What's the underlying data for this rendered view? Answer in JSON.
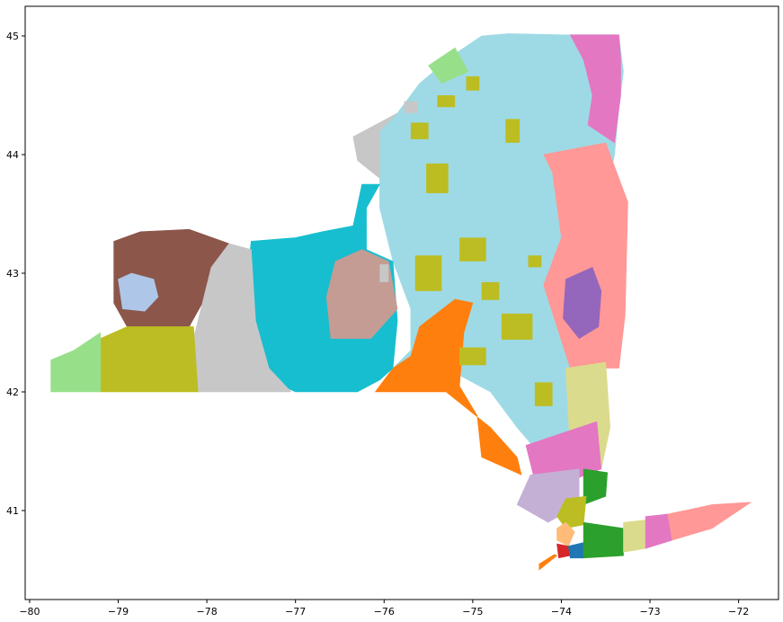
{
  "chart_data": {
    "type": "map",
    "xlim": [
      -80.05,
      -71.55
    ],
    "ylim": [
      40.25,
      45.25
    ],
    "x_ticks": [
      -80,
      -79,
      -78,
      -77,
      -76,
      -75,
      -74,
      -73,
      -72
    ],
    "y_ticks": [
      41,
      42,
      43,
      44,
      45
    ],
    "x_tick_labels": [
      "−80",
      "−79",
      "−78",
      "−77",
      "−76",
      "−75",
      "−74",
      "−73",
      "−72"
    ],
    "y_tick_labels": [
      "41",
      "42",
      "43",
      "44",
      "45"
    ],
    "grid": false,
    "legend": "none",
    "regions": [
      {
        "name": "r-lightblue",
        "color": "#9edae5",
        "pts": [
          [
            -75.9,
            42.2
          ],
          [
            -75.3,
            42.2
          ],
          [
            -74.8,
            42.0
          ],
          [
            -74.5,
            41.7
          ],
          [
            -74.1,
            41.35
          ],
          [
            -73.9,
            41.5
          ],
          [
            -73.7,
            41.9
          ],
          [
            -73.5,
            42.2
          ],
          [
            -73.55,
            42.5
          ],
          [
            -73.5,
            43.2
          ],
          [
            -73.5,
            43.6
          ],
          [
            -73.4,
            44.0
          ],
          [
            -73.35,
            44.4
          ],
          [
            -73.3,
            44.7
          ],
          [
            -73.35,
            45.0
          ],
          [
            -74.0,
            45.01
          ],
          [
            -74.6,
            45.02
          ],
          [
            -74.9,
            45.0
          ],
          [
            -75.2,
            44.85
          ],
          [
            -75.6,
            44.6
          ],
          [
            -75.85,
            44.35
          ],
          [
            -76.05,
            44.2
          ],
          [
            -76.05,
            43.55
          ],
          [
            -75.9,
            43.1
          ],
          [
            -75.7,
            42.7
          ],
          [
            -75.7,
            42.35
          ]
        ]
      },
      {
        "name": "r-pink-north",
        "color": "#e377c2",
        "pts": [
          [
            -73.35,
            45.01
          ],
          [
            -73.9,
            45.01
          ],
          [
            -73.75,
            44.8
          ],
          [
            -73.65,
            44.5
          ],
          [
            -73.7,
            44.25
          ],
          [
            -73.4,
            44.1
          ],
          [
            -73.33,
            44.5
          ],
          [
            -73.33,
            44.8
          ]
        ]
      },
      {
        "name": "r-salmon-east",
        "color": "#ff9896",
        "pts": [
          [
            -73.25,
            43.6
          ],
          [
            -73.28,
            42.65
          ],
          [
            -73.35,
            42.2
          ],
          [
            -73.9,
            42.2
          ],
          [
            -74.2,
            42.9
          ],
          [
            -74.0,
            43.3
          ],
          [
            -74.1,
            43.85
          ],
          [
            -74.2,
            44.0
          ],
          [
            -73.5,
            44.1
          ]
        ]
      },
      {
        "name": "r-purple-capital",
        "color": "#9467bd",
        "pts": [
          [
            -73.95,
            42.95
          ],
          [
            -73.65,
            43.05
          ],
          [
            -73.55,
            42.85
          ],
          [
            -73.58,
            42.55
          ],
          [
            -73.8,
            42.45
          ],
          [
            -73.98,
            42.62
          ]
        ]
      },
      {
        "name": "r-khaki-hudson",
        "color": "#dbdb8d",
        "pts": [
          [
            -73.5,
            42.25
          ],
          [
            -73.95,
            42.2
          ],
          [
            -73.9,
            41.5
          ],
          [
            -73.55,
            41.35
          ],
          [
            -73.45,
            41.7
          ]
        ]
      },
      {
        "name": "r-pink-hudson",
        "color": "#e377c2",
        "pts": [
          [
            -73.6,
            41.75
          ],
          [
            -74.4,
            41.55
          ],
          [
            -74.3,
            41.25
          ],
          [
            -73.9,
            41.25
          ],
          [
            -73.55,
            41.35
          ]
        ]
      },
      {
        "name": "r-lavender",
        "color": "#c5b0d5",
        "pts": [
          [
            -73.8,
            41.35
          ],
          [
            -74.35,
            41.3
          ],
          [
            -74.5,
            41.05
          ],
          [
            -74.15,
            40.9
          ],
          [
            -73.8,
            41.05
          ]
        ]
      },
      {
        "name": "r-green-west",
        "color": "#2ca02c",
        "pts": [
          [
            -73.75,
            41.35
          ],
          [
            -73.48,
            41.32
          ],
          [
            -73.5,
            41.12
          ],
          [
            -73.75,
            41.05
          ]
        ]
      },
      {
        "name": "r-olive-westchester",
        "color": "#bcbd22",
        "pts": [
          [
            -73.72,
            41.12
          ],
          [
            -73.95,
            41.1
          ],
          [
            -74.05,
            40.95
          ],
          [
            -73.95,
            40.85
          ],
          [
            -73.75,
            40.88
          ]
        ]
      },
      {
        "name": "r-orange",
        "color": "#ff7f0e",
        "pts": [
          [
            -76.1,
            42.0
          ],
          [
            -75.3,
            42.0
          ],
          [
            -74.8,
            41.7
          ],
          [
            -74.5,
            41.45
          ],
          [
            -74.45,
            41.3
          ],
          [
            -74.9,
            41.45
          ],
          [
            -74.95,
            41.8
          ],
          [
            -75.15,
            42.05
          ],
          [
            -75.1,
            42.5
          ],
          [
            -75.0,
            42.75
          ],
          [
            -75.2,
            42.78
          ],
          [
            -75.6,
            42.55
          ],
          [
            -75.7,
            42.3
          ],
          [
            -75.9,
            42.2
          ]
        ]
      },
      {
        "name": "r-cyan",
        "color": "#17becf",
        "pts": [
          [
            -77.5,
            42.6
          ],
          [
            -77.3,
            42.1
          ],
          [
            -77.0,
            42.0
          ],
          [
            -76.3,
            42.0
          ],
          [
            -76.05,
            42.1
          ],
          [
            -75.9,
            42.2
          ],
          [
            -75.85,
            42.6
          ],
          [
            -75.9,
            43.1
          ],
          [
            -76.2,
            43.2
          ],
          [
            -76.2,
            43.55
          ],
          [
            -76.05,
            43.75
          ],
          [
            -76.25,
            43.75
          ],
          [
            -76.35,
            43.4
          ],
          [
            -76.7,
            43.35
          ],
          [
            -77.0,
            43.3
          ],
          [
            -77.5,
            43.27
          ],
          [
            -77.55,
            42.95
          ]
        ]
      },
      {
        "name": "r-tan",
        "color": "#c49c94",
        "pts": [
          [
            -76.15,
            42.45
          ],
          [
            -76.6,
            42.45
          ],
          [
            -76.65,
            42.8
          ],
          [
            -76.55,
            43.1
          ],
          [
            -76.25,
            43.2
          ],
          [
            -75.95,
            43.1
          ],
          [
            -75.85,
            42.7
          ]
        ]
      },
      {
        "name": "r-brown",
        "color": "#8c564b",
        "pts": [
          [
            -79.05,
            43.27
          ],
          [
            -78.75,
            43.35
          ],
          [
            -78.2,
            43.37
          ],
          [
            -77.75,
            43.25
          ],
          [
            -77.95,
            43.05
          ],
          [
            -78.05,
            42.75
          ],
          [
            -78.2,
            42.55
          ],
          [
            -78.9,
            42.55
          ],
          [
            -79.05,
            42.75
          ]
        ]
      },
      {
        "name": "r-lightsteel",
        "color": "#aec7e8",
        "pts": [
          [
            -79.0,
            42.95
          ],
          [
            -78.85,
            43.0
          ],
          [
            -78.6,
            42.95
          ],
          [
            -78.55,
            42.8
          ],
          [
            -78.7,
            42.68
          ],
          [
            -78.95,
            42.7
          ]
        ]
      },
      {
        "name": "r-grey-center",
        "color": "#c7c7c7",
        "pts": [
          [
            -78.1,
            42.0
          ],
          [
            -77.05,
            42.0
          ],
          [
            -77.3,
            42.2
          ],
          [
            -77.45,
            42.6
          ],
          [
            -77.5,
            43.2
          ],
          [
            -77.75,
            43.25
          ],
          [
            -77.95,
            43.05
          ],
          [
            -78.05,
            42.75
          ],
          [
            -78.15,
            42.45
          ]
        ]
      },
      {
        "name": "r-olive-west",
        "color": "#bcbd22",
        "pts": [
          [
            -79.2,
            42.0
          ],
          [
            -78.1,
            42.0
          ],
          [
            -78.15,
            42.55
          ],
          [
            -78.9,
            42.55
          ],
          [
            -79.2,
            42.45
          ]
        ]
      },
      {
        "name": "r-lightgreen-west",
        "color": "#98df8a",
        "pts": [
          [
            -79.76,
            42.0
          ],
          [
            -79.2,
            42.0
          ],
          [
            -79.2,
            42.5
          ],
          [
            -79.5,
            42.35
          ],
          [
            -79.76,
            42.27
          ]
        ]
      },
      {
        "name": "r-grey-north",
        "color": "#c7c7c7",
        "pts": [
          [
            -75.85,
            44.35
          ],
          [
            -76.35,
            44.15
          ],
          [
            -76.3,
            43.95
          ],
          [
            -76.05,
            43.8
          ],
          [
            -76.05,
            44.2
          ]
        ]
      },
      {
        "name": "r-lightgreen-north",
        "color": "#98df8a",
        "pts": [
          [
            -75.5,
            44.75
          ],
          [
            -75.2,
            44.9
          ],
          [
            -75.05,
            44.7
          ],
          [
            -75.35,
            44.6
          ]
        ]
      },
      {
        "name": "r-peach-nyc",
        "color": "#ffbb78",
        "pts": [
          [
            -73.95,
            40.9
          ],
          [
            -74.05,
            40.85
          ],
          [
            -74.05,
            40.75
          ],
          [
            -73.92,
            40.7
          ],
          [
            -73.85,
            40.82
          ]
        ]
      },
      {
        "name": "r-red-nyc",
        "color": "#d62728",
        "pts": [
          [
            -74.05,
            40.72
          ],
          [
            -73.92,
            40.7
          ],
          [
            -73.9,
            40.62
          ],
          [
            -74.03,
            40.6
          ]
        ]
      },
      {
        "name": "r-blue-nyc",
        "color": "#1f77b4",
        "pts": [
          [
            -73.92,
            40.7
          ],
          [
            -73.75,
            40.73
          ],
          [
            -73.75,
            40.6
          ],
          [
            -73.9,
            40.6
          ]
        ]
      },
      {
        "name": "r-orange-si",
        "color": "#ff7f0e",
        "pts": [
          [
            -74.25,
            40.5
          ],
          [
            -74.05,
            40.62
          ],
          [
            -74.08,
            40.63
          ],
          [
            -74.25,
            40.55
          ]
        ]
      },
      {
        "name": "r-green-li",
        "color": "#2ca02c",
        "pts": [
          [
            -73.75,
            40.6
          ],
          [
            -73.3,
            40.62
          ],
          [
            -73.3,
            40.85
          ],
          [
            -73.75,
            40.9
          ]
        ]
      },
      {
        "name": "r-khaki-li",
        "color": "#dbdb8d",
        "pts": [
          [
            -73.3,
            40.65
          ],
          [
            -73.05,
            40.68
          ],
          [
            -73.05,
            40.92
          ],
          [
            -73.3,
            40.9
          ]
        ]
      },
      {
        "name": "r-pink-li",
        "color": "#e377c2",
        "pts": [
          [
            -73.05,
            40.68
          ],
          [
            -72.75,
            40.75
          ],
          [
            -72.8,
            40.97
          ],
          [
            -73.05,
            40.95
          ]
        ]
      },
      {
        "name": "r-salmon-li",
        "color": "#ff9896",
        "pts": [
          [
            -72.75,
            40.75
          ],
          [
            -72.3,
            40.85
          ],
          [
            -71.86,
            41.07
          ],
          [
            -72.3,
            41.05
          ],
          [
            -72.8,
            40.97
          ]
        ]
      }
    ],
    "patches": [
      {
        "color": "#bcbd22",
        "lon": -74.55,
        "lat": 44.2,
        "w": 0.16,
        "h": 0.2
      },
      {
        "color": "#bcbd22",
        "lon": -75.6,
        "lat": 44.2,
        "w": 0.2,
        "h": 0.14
      },
      {
        "color": "#bcbd22",
        "lon": -75.4,
        "lat": 43.8,
        "w": 0.25,
        "h": 0.25
      },
      {
        "color": "#bcbd22",
        "lon": -75.0,
        "lat": 43.2,
        "w": 0.3,
        "h": 0.2
      },
      {
        "color": "#bcbd22",
        "lon": -75.5,
        "lat": 43.0,
        "w": 0.3,
        "h": 0.3
      },
      {
        "color": "#bcbd22",
        "lon": -74.8,
        "lat": 42.85,
        "w": 0.2,
        "h": 0.15
      },
      {
        "color": "#bcbd22",
        "lon": -74.5,
        "lat": 42.55,
        "w": 0.35,
        "h": 0.22
      },
      {
        "color": "#bcbd22",
        "lon": -75.0,
        "lat": 42.3,
        "w": 0.3,
        "h": 0.15
      },
      {
        "color": "#bcbd22",
        "lon": -74.2,
        "lat": 41.98,
        "w": 0.2,
        "h": 0.2
      },
      {
        "color": "#bcbd22",
        "lon": -75.0,
        "lat": 44.6,
        "w": 0.15,
        "h": 0.12
      },
      {
        "color": "#bcbd22",
        "lon": -75.3,
        "lat": 44.45,
        "w": 0.2,
        "h": 0.1
      },
      {
        "color": "#bcbd22",
        "lon": -74.3,
        "lat": 43.1,
        "w": 0.15,
        "h": 0.1
      },
      {
        "color": "#c7c7c7",
        "lon": -75.7,
        "lat": 44.4,
        "w": 0.15,
        "h": 0.1
      },
      {
        "color": "#c7c7c7",
        "lon": -76.0,
        "lat": 43.0,
        "w": 0.1,
        "h": 0.15
      }
    ]
  }
}
